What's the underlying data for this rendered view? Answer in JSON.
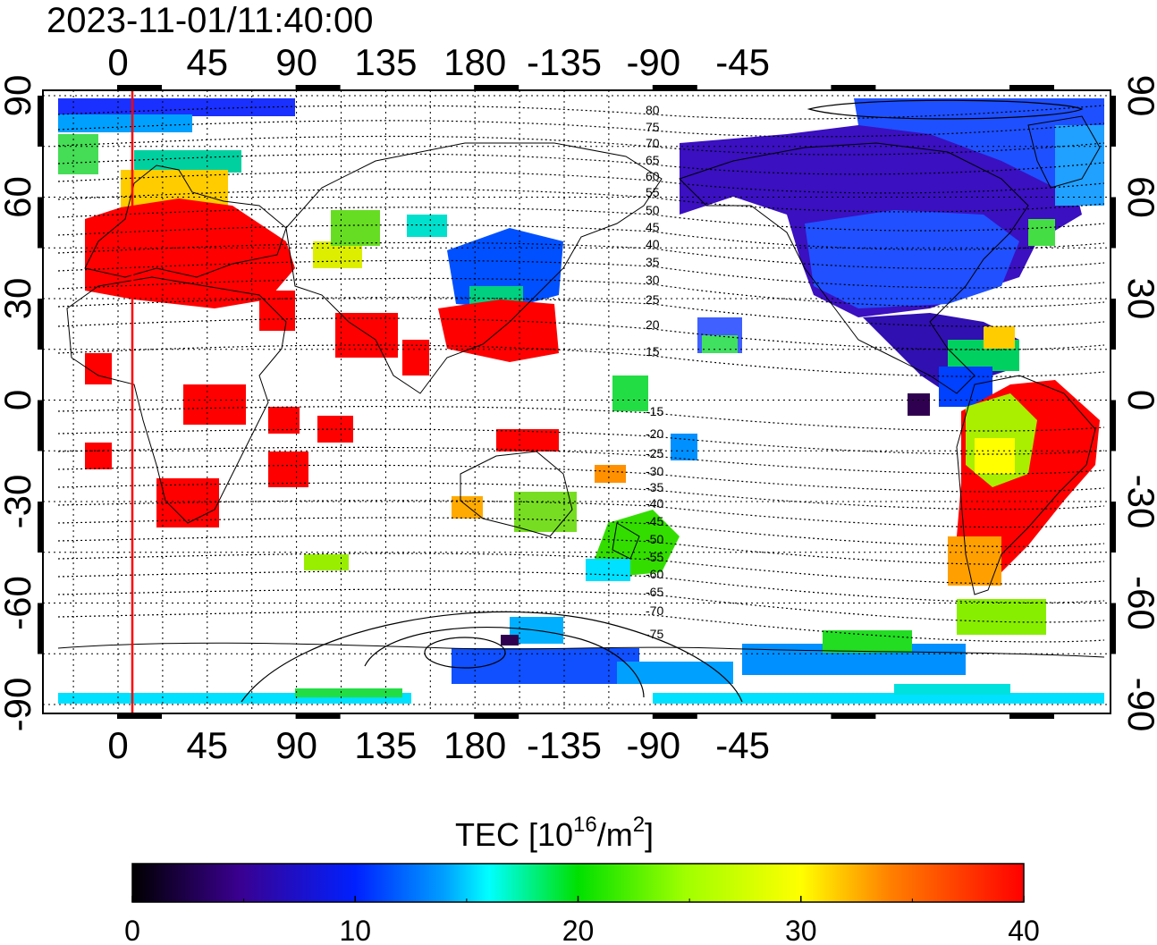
{
  "title": "2023-11-01/11:40:00",
  "map": {
    "top_lon_labels": [
      "0",
      "45",
      "90",
      "135",
      "180",
      "-135",
      "-90",
      "-45"
    ],
    "bottom_lon_labels": [
      "0",
      "45",
      "90",
      "135",
      "180",
      "-135",
      "-90",
      "-45"
    ],
    "left_lat_labels": [
      "90",
      "60",
      "30",
      "0",
      "-30",
      "-60",
      "-90"
    ],
    "right_lat_labels": [
      "90",
      "60",
      "30",
      "0",
      "-30",
      "-60",
      "-90"
    ],
    "contour_labels": [
      "80",
      "75",
      "70",
      "65",
      "60",
      "55",
      "50",
      "45",
      "40",
      "35",
      "30",
      "25",
      "20",
      "15",
      "-15",
      "-20",
      "-25",
      "-30",
      "-35",
      "-40",
      "-45",
      "-50",
      "-55",
      "-60",
      "-65",
      "-70",
      "-75"
    ],
    "terminator_line_color": "#ff0000"
  },
  "colorbar": {
    "label_main": "TEC  [10",
    "label_sup1": "16",
    "label_mid": "/m",
    "label_sup2": "2",
    "label_end": "]",
    "ticks": [
      "0",
      "10",
      "20",
      "30",
      "40"
    ],
    "min": 0,
    "max": 40
  },
  "palette": {
    "red": "#ff0000",
    "orange": "#ff8c00",
    "yellow": "#ffff00",
    "green": "#22dd00",
    "cyan": "#00e5ff",
    "blue": "#0040ff",
    "indigo": "#3a10c0",
    "darkpurple": "#28004a"
  }
}
